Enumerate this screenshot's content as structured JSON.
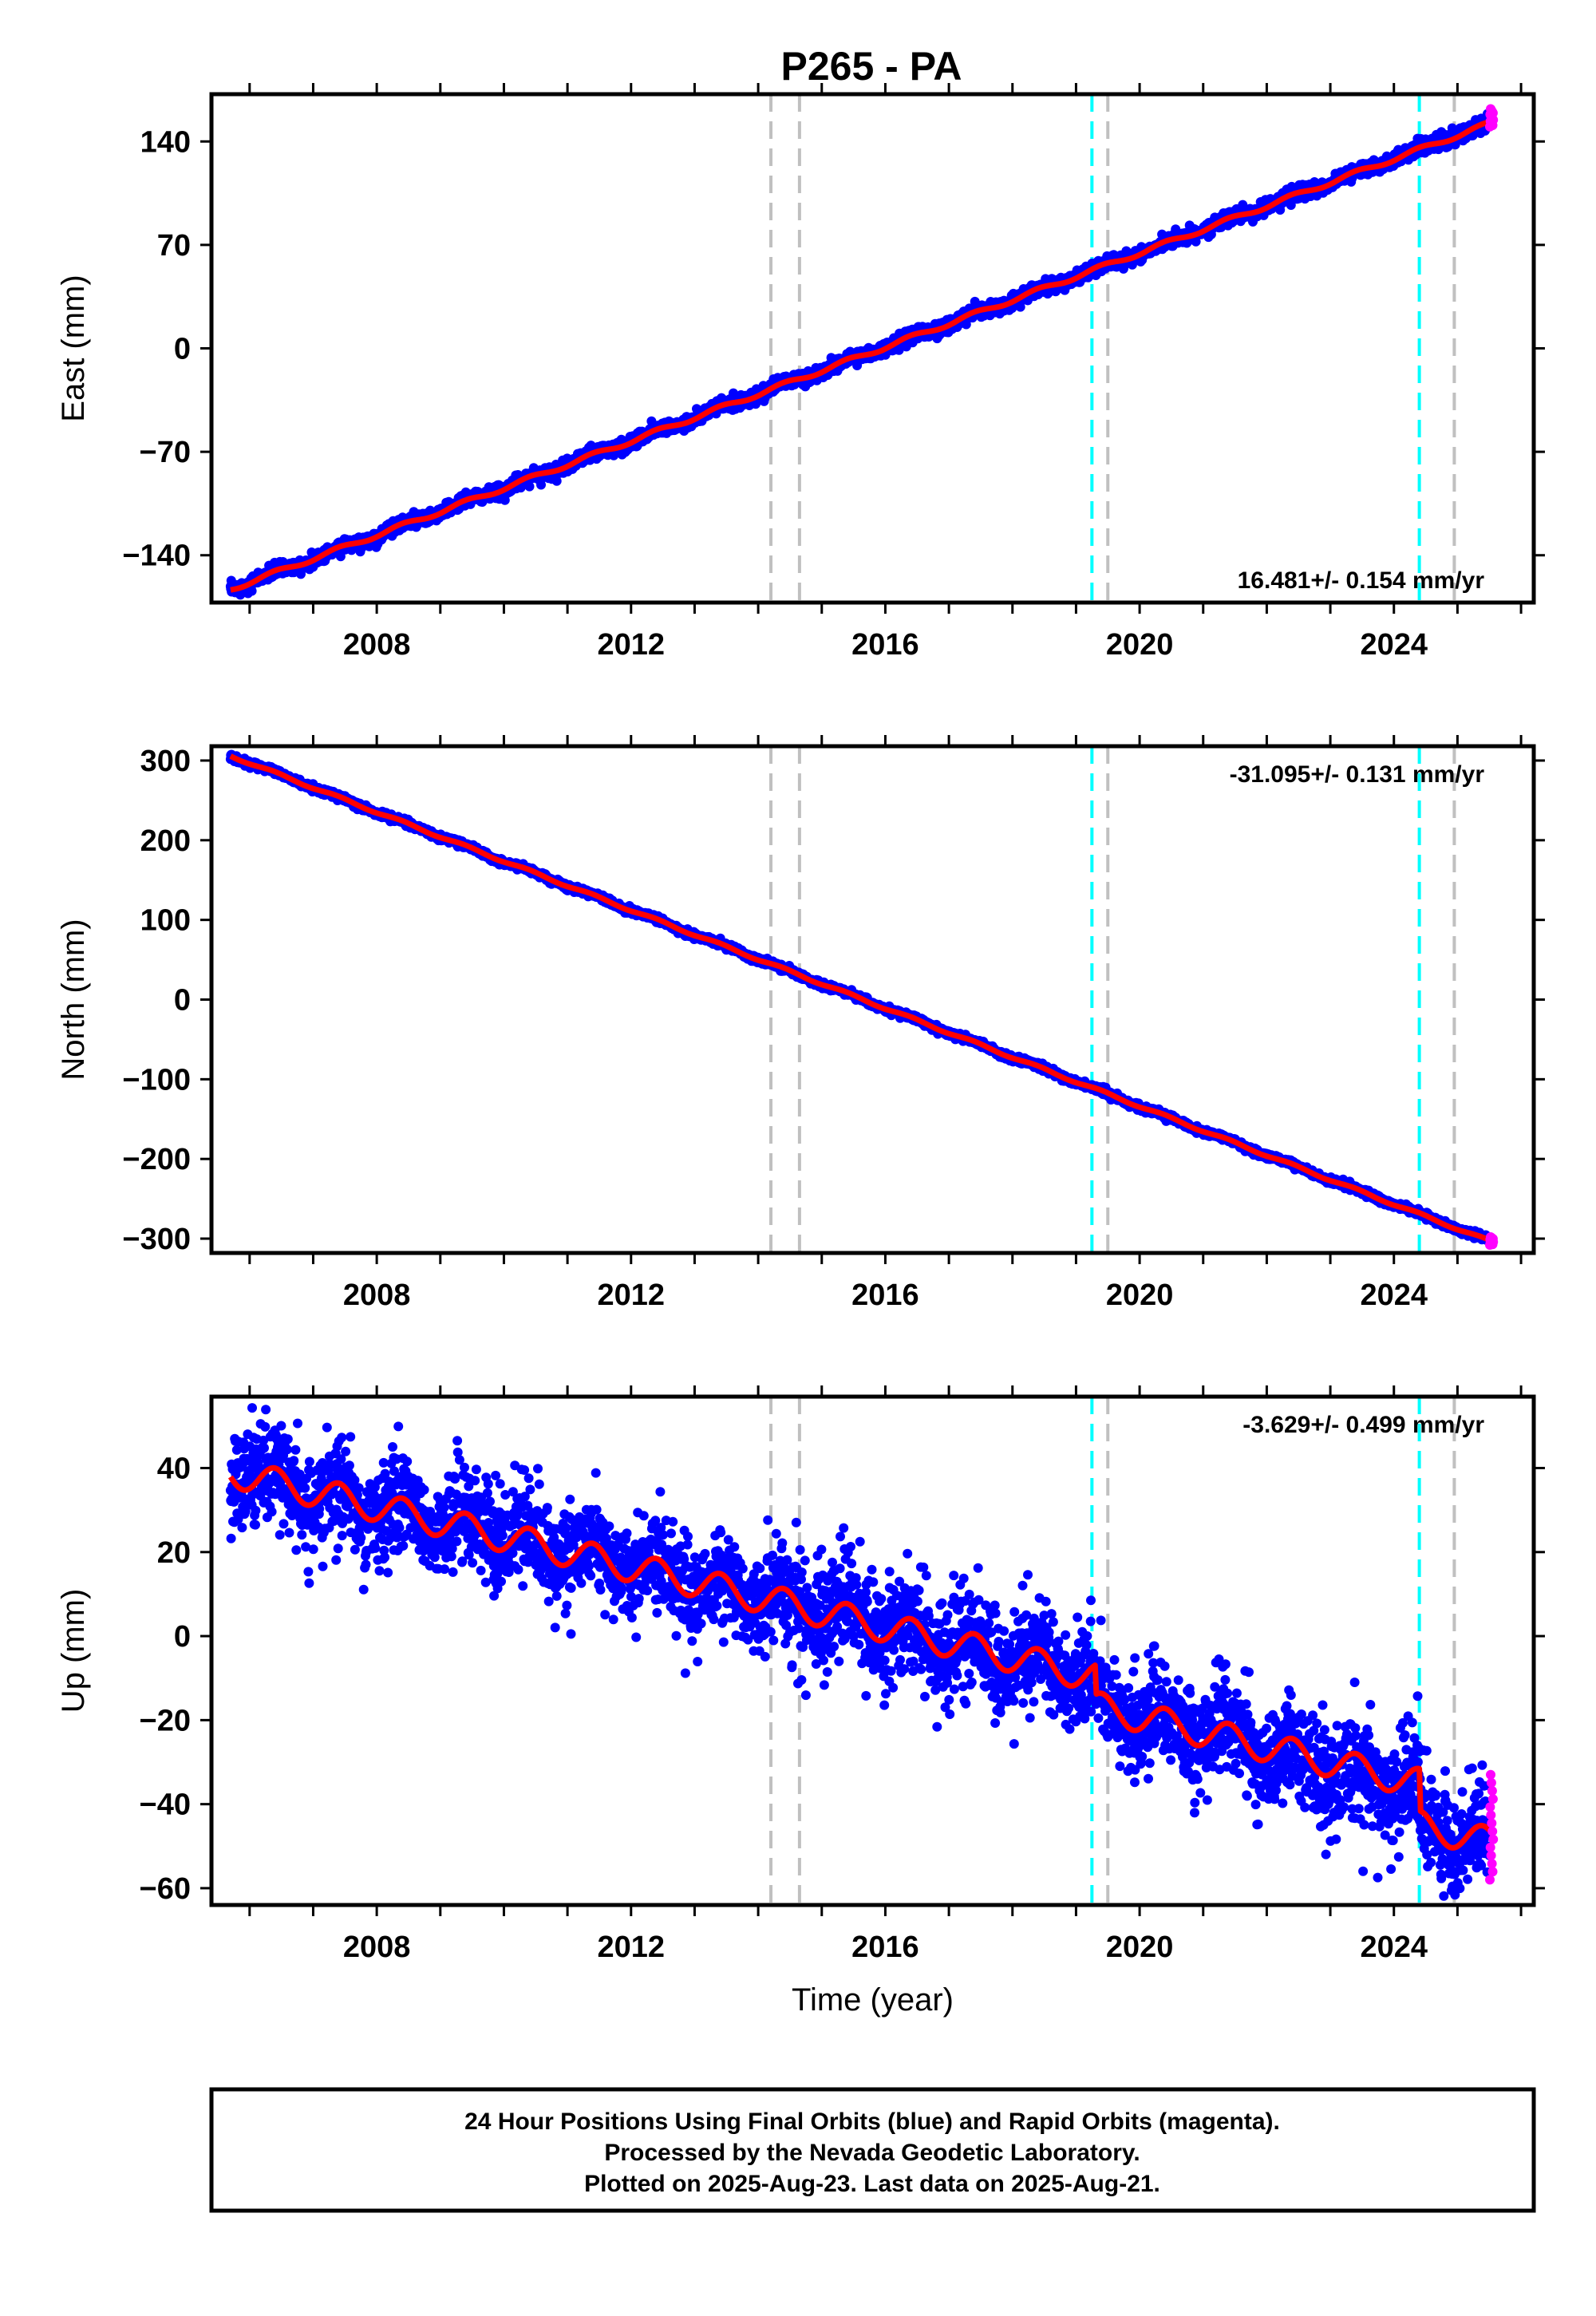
{
  "title": "P265 - PA",
  "footer": {
    "lines": [
      "24 Hour Positions Using Final Orbits (blue) and Rapid Orbits (magenta).",
      "Processed by the Nevada Geodetic Laboratory.",
      "Plotted on 2025-Aug-23. Last data on 2025-Aug-21."
    ]
  },
  "colors": {
    "final_orbits": "#0000ff",
    "rapid_orbits": "#ff00ff",
    "model": "#ff0000",
    "gray_marker": "#c0c0c0",
    "cyan_marker": "#00ffff"
  },
  "chart_data": [
    {
      "type": "scatter",
      "component": "east",
      "ylabel": "East (mm)",
      "xlabel": "",
      "xlim": [
        2005.4,
        2026.2
      ],
      "ylim": [
        -172,
        172
      ],
      "xticks": [
        2008,
        2012,
        2016,
        2020,
        2024
      ],
      "yticks": [
        -140,
        -70,
        0,
        70,
        140
      ],
      "rate_label": "16.481+/- 0.154 mm/yr",
      "rate_position": "bottom-right",
      "start": [
        2005.7,
        -163
      ],
      "end": [
        2025.5,
        152
      ],
      "rate": 16.481,
      "noise": 2.2,
      "seasonal": 1.5,
      "steps": [],
      "rapid_range": [
        150,
        162
      ],
      "gray_lines": [
        2014.2,
        2014.65,
        2019.5,
        2024.95
      ],
      "cyan_lines": [
        2019.25,
        2024.4
      ]
    },
    {
      "type": "scatter",
      "component": "north",
      "ylabel": "North (mm)",
      "xlabel": "",
      "xlim": [
        2005.4,
        2026.2
      ],
      "ylim": [
        -318,
        318
      ],
      "xticks": [
        2008,
        2012,
        2016,
        2020,
        2024
      ],
      "yticks": [
        -300,
        -200,
        -100,
        0,
        100,
        200,
        300
      ],
      "rate_label": "-31.095+/- 0.131 mm/yr",
      "rate_position": "top-right",
      "start": [
        2005.7,
        306
      ],
      "end": [
        2025.5,
        -303
      ],
      "rate": -31.095,
      "noise": 2.0,
      "seasonal": 1.5,
      "steps": [],
      "rapid_range": [
        -308,
        -298
      ],
      "gray_lines": [
        2014.2,
        2014.65,
        2019.5,
        2024.95
      ],
      "cyan_lines": [
        2019.25,
        2024.4
      ]
    },
    {
      "type": "scatter",
      "component": "up",
      "ylabel": "Up (mm)",
      "xlabel": "Time (year)",
      "xlim": [
        2005.4,
        2026.2
      ],
      "ylim": [
        -64,
        57
      ],
      "xticks": [
        2008,
        2012,
        2016,
        2020,
        2024
      ],
      "yticks": [
        -60,
        -40,
        -20,
        0,
        20,
        40
      ],
      "rate_label": "-3.629+/- 0.499 mm/yr",
      "rate_position": "top-right",
      "start": [
        2005.7,
        39
      ],
      "end": [
        2025.5,
        -49
      ],
      "rate": -3.629,
      "noise": 5.5,
      "seasonal": 3.5,
      "steps": [
        [
          2019.3,
          -7
        ],
        [
          2024.4,
          -10
        ]
      ],
      "rapid_range": [
        -58,
        -33
      ],
      "gray_lines": [
        2014.2,
        2014.65,
        2019.5,
        2024.95
      ],
      "cyan_lines": [
        2019.25,
        2024.4
      ]
    }
  ]
}
